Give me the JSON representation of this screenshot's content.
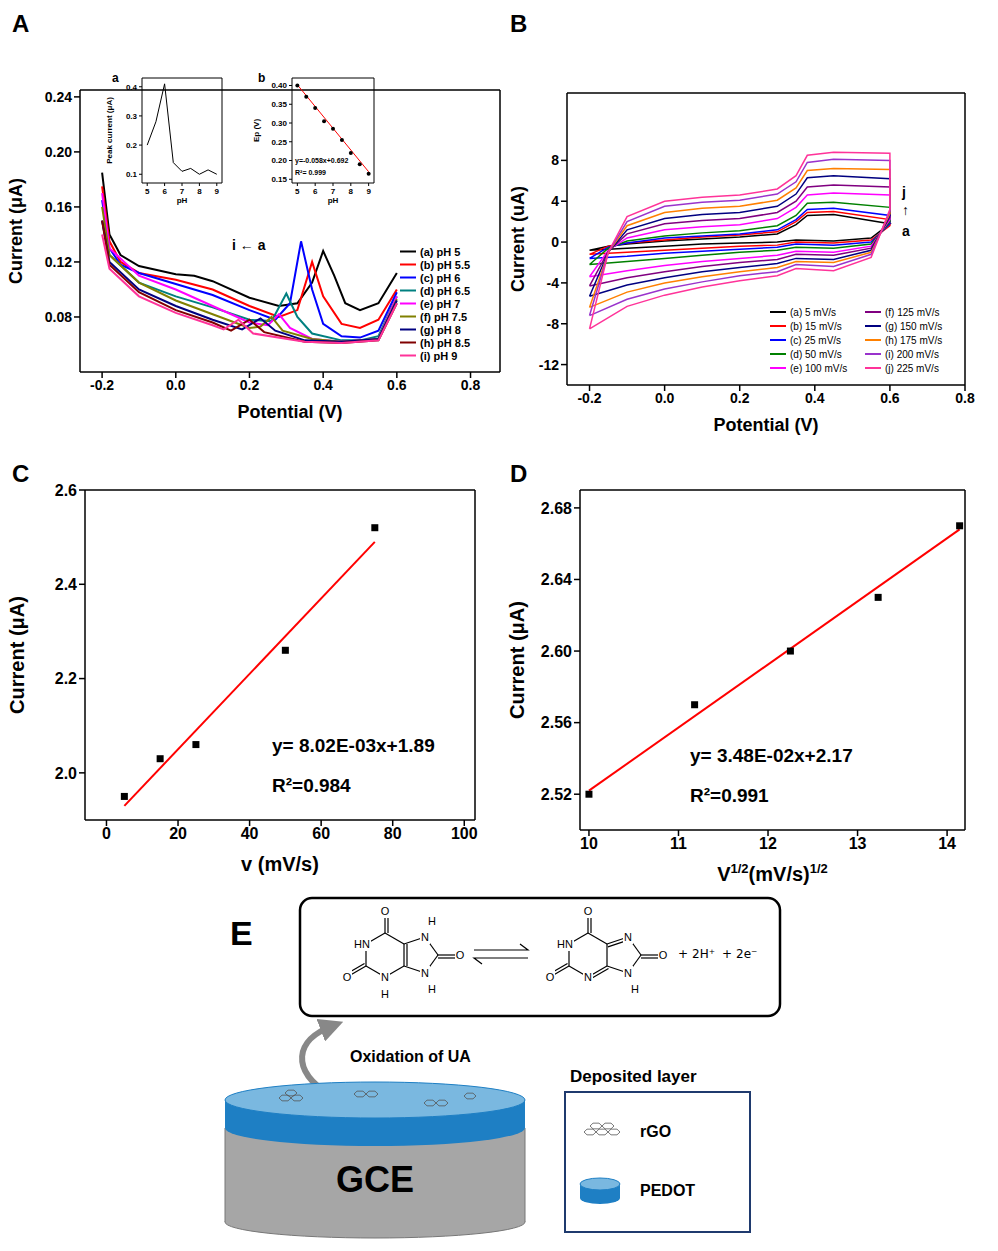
{
  "chart_data": [
    {
      "panel": "A",
      "type": "line",
      "xlabel": "Potential (V)",
      "ylabel": "Current (μA)",
      "xlim": [
        -0.26,
        0.88
      ],
      "xticks": [
        -0.2,
        {
          "value": 0,
          "label": "0.0"
        },
        0.2,
        0.4,
        0.6,
        0.8
      ],
      "ylim": [
        0.04,
        0.245
      ],
      "yticks": [
        0.08,
        0.12,
        0.16,
        {
          "value": 0.2,
          "label": "0.20"
        },
        0.24
      ],
      "legend": "lower right",
      "annotations": [
        "i ← a"
      ],
      "series": [
        {
          "name": "(a) pH 5",
          "color": "#000000",
          "x": [
            -0.2,
            -0.18,
            -0.15,
            -0.1,
            0,
            0.05,
            0.1,
            0.2,
            0.28,
            0.33,
            0.37,
            0.4,
            0.43,
            0.46,
            0.5,
            0.55,
            0.6
          ],
          "values": [
            0.185,
            0.14,
            0.125,
            0.117,
            0.111,
            0.11,
            0.106,
            0.094,
            0.088,
            0.09,
            0.105,
            0.128,
            0.11,
            0.09,
            0.085,
            0.09,
            0.112
          ]
        },
        {
          "name": "(b) pH 5.5",
          "color": "#ff0000",
          "x": [
            -0.2,
            -0.18,
            -0.15,
            -0.1,
            0,
            0.1,
            0.2,
            0.28,
            0.33,
            0.37,
            0.4,
            0.45,
            0.5,
            0.55,
            0.6
          ],
          "values": [
            0.175,
            0.135,
            0.12,
            0.112,
            0.107,
            0.1,
            0.088,
            0.08,
            0.085,
            0.12,
            0.095,
            0.075,
            0.072,
            0.078,
            0.1
          ]
        },
        {
          "name": "(c) pH 6",
          "color": "#0000ff",
          "x": [
            -0.2,
            -0.18,
            -0.15,
            -0.1,
            0,
            0.1,
            0.2,
            0.27,
            0.31,
            0.34,
            0.37,
            0.4,
            0.45,
            0.5,
            0.55,
            0.6
          ],
          "values": [
            0.165,
            0.13,
            0.118,
            0.112,
            0.104,
            0.096,
            0.085,
            0.078,
            0.09,
            0.135,
            0.1,
            0.075,
            0.066,
            0.065,
            0.07,
            0.098
          ]
        },
        {
          "name": "(d) pH 6.5",
          "color": "#008080",
          "x": [
            -0.2,
            -0.18,
            -0.1,
            0,
            0.1,
            0.2,
            0.26,
            0.3,
            0.33,
            0.37,
            0.45,
            0.5,
            0.55,
            0.6
          ],
          "values": [
            0.15,
            0.125,
            0.105,
            0.095,
            0.087,
            0.078,
            0.077,
            0.097,
            0.08,
            0.068,
            0.063,
            0.063,
            0.066,
            0.095
          ]
        },
        {
          "name": "(e) pH 7",
          "color": "#ff00ff",
          "x": [
            -0.2,
            -0.18,
            -0.1,
            0,
            0.1,
            0.2,
            0.25,
            0.28,
            0.31,
            0.37,
            0.45,
            0.55,
            0.6
          ],
          "values": [
            0.17,
            0.13,
            0.11,
            0.1,
            0.088,
            0.076,
            0.074,
            0.082,
            0.072,
            0.064,
            0.062,
            0.064,
            0.095
          ]
        },
        {
          "name": "(f) pH 7.5",
          "color": "#808000",
          "x": [
            -0.2,
            -0.18,
            -0.1,
            0,
            0.1,
            0.2,
            0.23,
            0.26,
            0.29,
            0.37,
            0.45,
            0.55,
            0.6
          ],
          "values": [
            0.16,
            0.125,
            0.105,
            0.092,
            0.082,
            0.072,
            0.073,
            0.08,
            0.07,
            0.064,
            0.062,
            0.064,
            0.093
          ]
        },
        {
          "name": "(g) pH 8",
          "color": "#000080",
          "x": [
            -0.2,
            -0.18,
            -0.1,
            0,
            0.1,
            0.18,
            0.23,
            0.27,
            0.35,
            0.45,
            0.55,
            0.6
          ],
          "values": [
            0.15,
            0.12,
            0.1,
            0.088,
            0.078,
            0.071,
            0.079,
            0.07,
            0.063,
            0.062,
            0.064,
            0.092
          ]
        },
        {
          "name": "(h) pH 8.5",
          "color": "#800000",
          "x": [
            -0.2,
            -0.18,
            -0.1,
            0,
            0.1,
            0.15,
            0.2,
            0.24,
            0.35,
            0.45,
            0.55,
            0.6
          ],
          "values": [
            0.15,
            0.118,
            0.098,
            0.085,
            0.076,
            0.07,
            0.078,
            0.069,
            0.062,
            0.061,
            0.063,
            0.09
          ]
        },
        {
          "name": "(i) pH 9",
          "color": "#ff3399",
          "x": [
            -0.2,
            -0.18,
            -0.1,
            0,
            0.1,
            0.13,
            0.17,
            0.21,
            0.35,
            0.45,
            0.55,
            0.6
          ],
          "values": [
            0.14,
            0.115,
            0.095,
            0.083,
            0.074,
            0.071,
            0.078,
            0.068,
            0.062,
            0.061,
            0.063,
            0.09
          ]
        }
      ]
    },
    {
      "panel": "a",
      "type": "line",
      "xlabel": "pH",
      "ylabel": "Peak current (μA)",
      "xlim": [
        4.7,
        9.3
      ],
      "xticks": [
        5,
        6,
        7,
        8,
        9
      ],
      "ylim": [
        0.07,
        0.43
      ],
      "yticks": [
        0.1,
        0.2,
        0.3,
        0.4
      ],
      "series": [
        {
          "color": "#000000",
          "x": [
            5,
            5.5,
            6,
            6.5,
            7,
            7.5,
            8,
            8.5,
            9
          ],
          "values": [
            0.2,
            0.28,
            0.41,
            0.14,
            0.11,
            0.12,
            0.1,
            0.115,
            0.1
          ]
        }
      ]
    },
    {
      "panel": "b",
      "type": "scatter",
      "xlabel": "pH",
      "ylabel": "Ep (V)",
      "xlim": [
        4.7,
        9.3
      ],
      "xticks": [
        5,
        6,
        7,
        8,
        9
      ],
      "ylim": [
        0.14,
        0.42
      ],
      "yticks": [
        0.15,
        {
          "value": 0.2,
          "label": "0.20"
        },
        0.25,
        {
          "value": 0.3,
          "label": "0.30"
        },
        0.35,
        {
          "value": 0.4,
          "label": "0.40"
        }
      ],
      "annotations": [
        "y=-0.058x+0.692",
        "R²= 0.999"
      ],
      "series": [
        {
          "type": "scatter",
          "color": "#000000",
          "marker": "circle",
          "x": [
            5,
            5.5,
            6,
            6.5,
            7,
            7.5,
            8,
            8.5,
            9
          ],
          "values": [
            0.4,
            0.37,
            0.34,
            0.305,
            0.285,
            0.255,
            0.22,
            0.19,
            0.165
          ]
        },
        {
          "type": "line",
          "color": "#ff0000",
          "x": [
            5,
            9
          ],
          "values": [
            0.402,
            0.17
          ]
        }
      ]
    },
    {
      "panel": "B",
      "type": "line",
      "xlabel": "Potential (V)",
      "ylabel": "Current (uA)",
      "xlim": [
        -0.26,
        0.8
      ],
      "xticks": [
        -0.2,
        {
          "value": 0,
          "label": "0.0"
        },
        0.2,
        0.4,
        0.6,
        0.8
      ],
      "ylim": [
        -14,
        14.6
      ],
      "yticks": [
        -12,
        -8,
        -4,
        0,
        4,
        8
      ],
      "legend": "lower right",
      "annotations": [
        "j",
        "↑",
        "a"
      ],
      "x": [
        -0.2,
        -0.15,
        -0.1,
        0,
        0.1,
        0.2,
        0.3,
        0.35,
        0.38,
        0.45,
        0.6,
        0.6,
        0.55,
        0.45,
        0.35,
        0.3,
        0.2,
        0.1,
        0,
        -0.1,
        -0.2
      ],
      "series": [
        {
          "name": "(a) 5 mV/s",
          "color": "#000000",
          "values": [
            -0.8,
            -0.4,
            -0.2,
            0.1,
            0.3,
            0.5,
            0.8,
            1.7,
            2.6,
            2.7,
            1.8,
            1.8,
            0.4,
            0.1,
            0.2,
            0.0,
            -0.1,
            -0.2,
            -0.4,
            -0.6,
            -0.8
          ]
        },
        {
          "name": "(b) 15 mV/s",
          "color": "#ff0000",
          "values": [
            -1.2,
            -0.4,
            -0.1,
            0.2,
            0.5,
            0.7,
            1.0,
            2.0,
            2.9,
            3.0,
            2.2,
            1.6,
            0.2,
            -0.1,
            0.0,
            -0.3,
            -0.4,
            -0.6,
            -0.8,
            -1.0,
            -1.2
          ]
        },
        {
          "name": "(c) 25 mV/s",
          "color": "#0000ff",
          "values": [
            -1.6,
            -0.5,
            -0.1,
            0.4,
            0.6,
            0.8,
            1.2,
            2.2,
            3.2,
            3.3,
            2.6,
            1.8,
            0.0,
            -0.3,
            -0.2,
            -0.5,
            -0.7,
            -0.9,
            -1.1,
            -1.4,
            -1.6
          ]
        },
        {
          "name": "(d) 50 mV/s",
          "color": "#008000",
          "values": [
            -2.2,
            -0.6,
            0.1,
            0.6,
            0.9,
            1.1,
            1.6,
            2.6,
            3.8,
            3.9,
            3.4,
            2.0,
            -0.2,
            -0.6,
            -0.5,
            -0.8,
            -1.0,
            -1.3,
            -1.6,
            -1.9,
            -2.2
          ]
        },
        {
          "name": "(e) 100 mV/s",
          "color": "#ff00ff",
          "values": [
            -3.4,
            -0.8,
            0.4,
            1.2,
            1.5,
            1.7,
            2.3,
            3.4,
            4.6,
            4.8,
            4.6,
            2.2,
            -0.4,
            -1.0,
            -0.9,
            -1.3,
            -1.6,
            -1.9,
            -2.3,
            -2.8,
            -3.4
          ]
        },
        {
          "name": "(f) 125 mV/s",
          "color": "#800080",
          "values": [
            -4.3,
            -0.9,
            0.8,
            1.8,
            2.1,
            2.3,
            2.9,
            4.0,
            5.4,
            5.6,
            5.4,
            2.4,
            -0.6,
            -1.3,
            -1.2,
            -1.7,
            -2.0,
            -2.4,
            -2.9,
            -3.5,
            -4.3
          ]
        },
        {
          "name": "(g) 150 mV/s",
          "color": "#000080",
          "values": [
            -5.3,
            -1.0,
            1.2,
            2.3,
            2.7,
            2.9,
            3.5,
            4.7,
            6.3,
            6.5,
            6.2,
            2.6,
            -0.8,
            -1.7,
            -1.6,
            -2.1,
            -2.5,
            -2.9,
            -3.5,
            -4.2,
            -5.3
          ]
        },
        {
          "name": "(h) 175 mV/s",
          "color": "#ff8000",
          "values": [
            -6.4,
            -1.0,
            1.6,
            2.9,
            3.3,
            3.5,
            4.1,
            5.3,
            7.0,
            7.2,
            7.1,
            2.8,
            -1.0,
            -2.0,
            -1.9,
            -2.5,
            -2.9,
            -3.4,
            -4.0,
            -4.9,
            -6.4
          ]
        },
        {
          "name": "(i) 200 mV/s",
          "color": "#9933cc",
          "values": [
            -7.2,
            -1.0,
            2.0,
            3.5,
            3.9,
            4.1,
            4.7,
            5.9,
            7.8,
            8.1,
            8.0,
            3.0,
            -1.2,
            -2.4,
            -2.2,
            -2.9,
            -3.3,
            -3.9,
            -4.6,
            -5.6,
            -7.2
          ]
        },
        {
          "name": "(j) 225 mV/s",
          "color": "#ff3399",
          "values": [
            -8.5,
            -1.0,
            2.5,
            4.0,
            4.4,
            4.6,
            5.2,
            6.5,
            8.5,
            8.8,
            8.7,
            3.2,
            -1.5,
            -2.8,
            -2.6,
            -3.3,
            -3.8,
            -4.4,
            -5.2,
            -6.3,
            -8.5
          ]
        }
      ]
    },
    {
      "panel": "C",
      "type": "scatter",
      "xlabel": "v (mV/s)",
      "ylabel": "Current (μA)",
      "xlim": [
        -6,
        103
      ],
      "xticks": [
        0,
        20,
        40,
        60,
        80,
        100
      ],
      "ylim": [
        1.9,
        2.6
      ],
      "yticks": [
        {
          "value": 2,
          "label": "2.0"
        },
        2.2,
        2.4,
        2.6
      ],
      "annotations": [
        "y= 8.02E-03x+1.89",
        "R²=0.984"
      ],
      "series": [
        {
          "type": "scatter",
          "color": "#000000",
          "marker": "square",
          "x": [
            5,
            15,
            25,
            50,
            75
          ],
          "values": [
            1.95,
            2.03,
            2.06,
            2.26,
            2.52
          ]
        },
        {
          "type": "line",
          "color": "#ff0000",
          "x": [
            5,
            75
          ],
          "values": [
            1.93,
            2.49
          ]
        }
      ]
    },
    {
      "panel": "D",
      "type": "scatter",
      "xlabel": [
        "V",
        "1/2",
        "(mV/s)",
        "1/2"
      ],
      "ylabel": "Current (μA)",
      "xlim": [
        9.9,
        14.2
      ],
      "xticks": [
        10,
        11,
        12,
        13,
        14
      ],
      "ylim": [
        2.5,
        2.69
      ],
      "yticks": [
        2.52,
        2.56,
        {
          "value": 2.6,
          "label": "2.60"
        },
        2.64,
        2.68
      ],
      "annotations": [
        "y= 3.48E-02x+2.17",
        "R²=0.991"
      ],
      "series": [
        {
          "type": "scatter",
          "color": "#000000",
          "marker": "square",
          "x": [
            10,
            11.18,
            12.25,
            13.23,
            14.14
          ],
          "values": [
            2.52,
            2.57,
            2.6,
            2.63,
            2.67
          ]
        },
        {
          "type": "line",
          "color": "#ff0000",
          "x": [
            10,
            14.14
          ],
          "values": [
            2.522,
            2.668
          ]
        }
      ]
    }
  ],
  "diagram": {
    "panel": "E",
    "reaction": {
      "reactant": [
        {
          "label": "O"
        },
        {
          "label": "HN"
        },
        {
          "label": "O"
        },
        {
          "label": "N",
          "h": "H"
        },
        {
          "label": "N",
          "h": "H"
        },
        {
          "label": "O"
        },
        {
          "label": "N",
          "h": "H"
        }
      ],
      "product": [
        {
          "label": "O"
        },
        {
          "label": "HN"
        },
        {
          "label": "O"
        },
        {
          "label": "N"
        },
        {
          "label": "N"
        },
        {
          "label": "O"
        },
        {
          "label": "N",
          "h": "H"
        }
      ],
      "byproducts": [
        "+",
        "2H⁺",
        "+",
        "2e⁻"
      ]
    },
    "arrow_label": "Oxidation of UA",
    "electrode": "GCE",
    "legend": {
      "title": "Deposited layer",
      "items": [
        "rGO",
        "PEDOT"
      ]
    }
  }
}
